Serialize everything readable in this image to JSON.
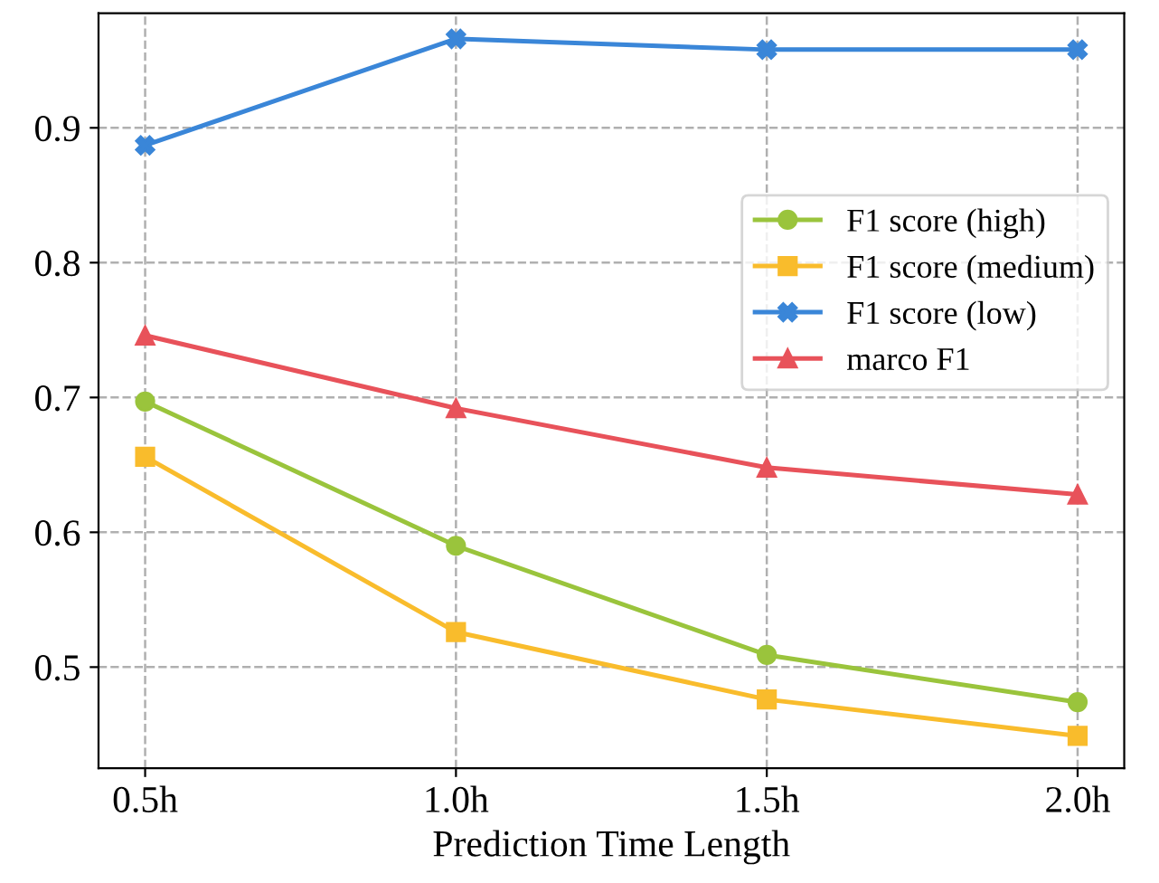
{
  "chart_data": {
    "type": "line",
    "xlabel": "Prediction Time Length",
    "categories": [
      "0.5h",
      "1.0h",
      "1.5h",
      "2.0h"
    ],
    "series": [
      {
        "name": "F1 score (high)",
        "color": "#9ac43c",
        "marker": "circle",
        "values": [
          0.697,
          0.59,
          0.509,
          0.474
        ]
      },
      {
        "name": "F1 score (medium)",
        "color": "#f9bc2c",
        "marker": "square",
        "values": [
          0.656,
          0.526,
          0.476,
          0.449
        ]
      },
      {
        "name": "F1 score (low)",
        "color": "#3a86d8",
        "marker": "cross",
        "values": [
          0.887,
          0.966,
          0.958,
          0.958
        ]
      },
      {
        "name": "marco F1",
        "color": "#e8525a",
        "marker": "triangle",
        "values": [
          0.746,
          0.692,
          0.648,
          0.628
        ]
      }
    ],
    "ylim": [
      0.425,
      0.985
    ],
    "yticks": [
      0.5,
      0.6,
      0.7,
      0.8,
      0.9
    ],
    "grid": true,
    "legend": "right",
    "line_style": "solid"
  }
}
